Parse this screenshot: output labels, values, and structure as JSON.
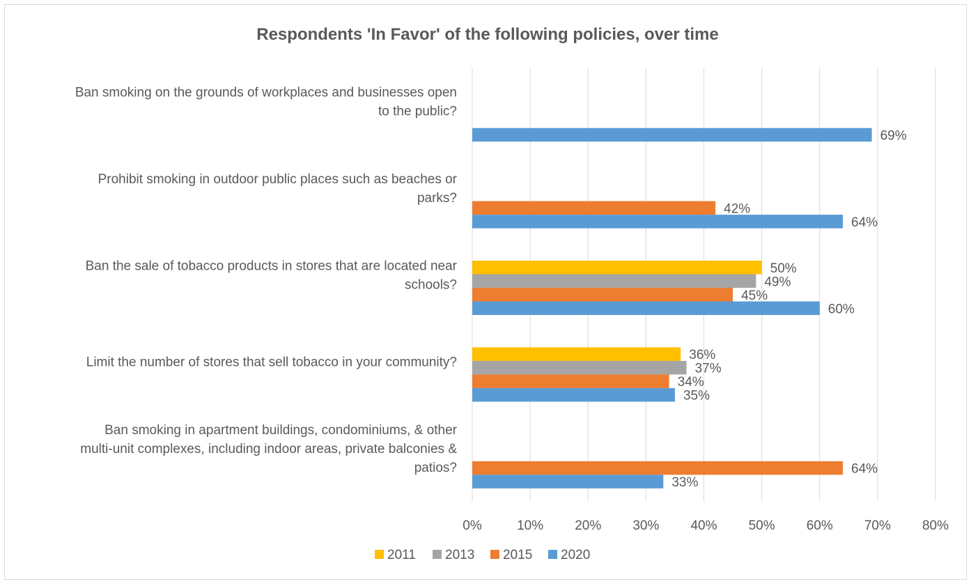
{
  "chart_data": {
    "type": "bar",
    "orientation": "horizontal",
    "title": "Respondents 'In Favor' of the following policies, over time",
    "xlabel": "",
    "ylabel": "",
    "xlim": [
      0,
      80
    ],
    "x_ticks": [
      "0%",
      "10%",
      "20%",
      "30%",
      "40%",
      "50%",
      "60%",
      "70%",
      "80%"
    ],
    "grid": "vertical",
    "legend_position": "bottom",
    "categories": [
      [
        "Ban smoking on the grounds of workplaces and businesses open",
        "to the public?"
      ],
      [
        "Prohibit smoking in outdoor public places such as beaches or",
        "parks?"
      ],
      [
        "Ban the sale of tobacco products in stores that are located near",
        "schools?"
      ],
      [
        "Limit the number of stores that sell tobacco in your community?"
      ],
      [
        "Ban smoking in apartment buildings, condominiums, & other",
        "multi-unit complexes, including indoor areas, private balconies &",
        "patios?"
      ]
    ],
    "series": [
      {
        "name": "2011",
        "color": "#ffc000",
        "values": [
          null,
          null,
          50,
          36,
          null
        ]
      },
      {
        "name": "2013",
        "color": "#a5a5a5",
        "values": [
          null,
          null,
          49,
          37,
          null
        ]
      },
      {
        "name": "2015",
        "color": "#ed7d31",
        "values": [
          null,
          42,
          45,
          34,
          64
        ]
      },
      {
        "name": "2020",
        "color": "#5b9bd5",
        "values": [
          69,
          64,
          60,
          35,
          33
        ]
      }
    ],
    "value_suffix": "%"
  }
}
